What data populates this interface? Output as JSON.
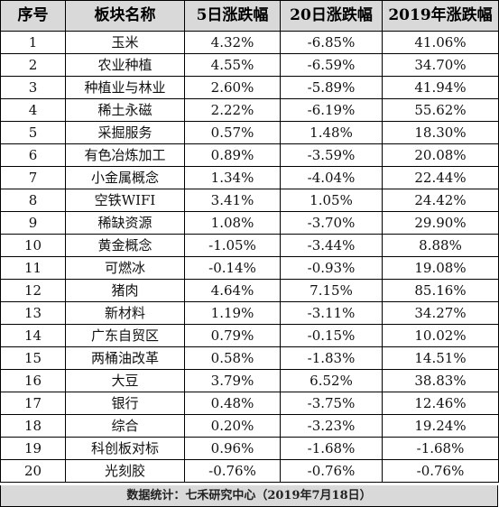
{
  "table": {
    "headers": [
      "序号",
      "板块名称",
      "5日涨跌幅",
      "20日涨跌幅",
      "2019年涨跌幅"
    ],
    "rows": [
      [
        "1",
        "玉米",
        "4.32%",
        "-6.85%",
        "41.06%"
      ],
      [
        "2",
        "农业种植",
        "4.55%",
        "-6.59%",
        "34.70%"
      ],
      [
        "3",
        "种植业与林业",
        "2.60%",
        "-5.89%",
        "41.94%"
      ],
      [
        "4",
        "稀土永磁",
        "2.22%",
        "-6.19%",
        "55.62%"
      ],
      [
        "5",
        "采掘服务",
        "0.57%",
        "1.48%",
        "18.30%"
      ],
      [
        "6",
        "有色冶炼加工",
        "0.89%",
        "-3.59%",
        "20.08%"
      ],
      [
        "7",
        "小金属概念",
        "1.34%",
        "-4.04%",
        "22.44%"
      ],
      [
        "8",
        "空铁WIFI",
        "3.41%",
        "1.05%",
        "24.42%"
      ],
      [
        "9",
        "稀缺资源",
        "1.08%",
        "-3.70%",
        "29.90%"
      ],
      [
        "10",
        "黄金概念",
        "-1.05%",
        "-3.44%",
        "8.88%"
      ],
      [
        "11",
        "可燃冰",
        "-0.14%",
        "-0.93%",
        "19.08%"
      ],
      [
        "12",
        "猪肉",
        "4.64%",
        "7.15%",
        "85.16%"
      ],
      [
        "13",
        "新材料",
        "1.19%",
        "-3.11%",
        "34.27%"
      ],
      [
        "14",
        "广东自贸区",
        "0.79%",
        "-0.15%",
        "10.02%"
      ],
      [
        "15",
        "两桶油改革",
        "0.58%",
        "-1.83%",
        "14.51%"
      ],
      [
        "16",
        "大豆",
        "3.79%",
        "6.52%",
        "38.83%"
      ],
      [
        "17",
        "银行",
        "0.48%",
        "-3.75%",
        "12.46%"
      ],
      [
        "18",
        "综合",
        "0.20%",
        "-3.23%",
        "19.24%"
      ],
      [
        "19",
        "科创板对标",
        "0.96%",
        "-1.68%",
        "-1.68%"
      ],
      [
        "20",
        "光刻胶",
        "-0.76%",
        "-0.76%",
        "-0.76%"
      ]
    ]
  },
  "footer": {
    "source": "数据统计：七禾研究中心（2019年7月18日）"
  }
}
